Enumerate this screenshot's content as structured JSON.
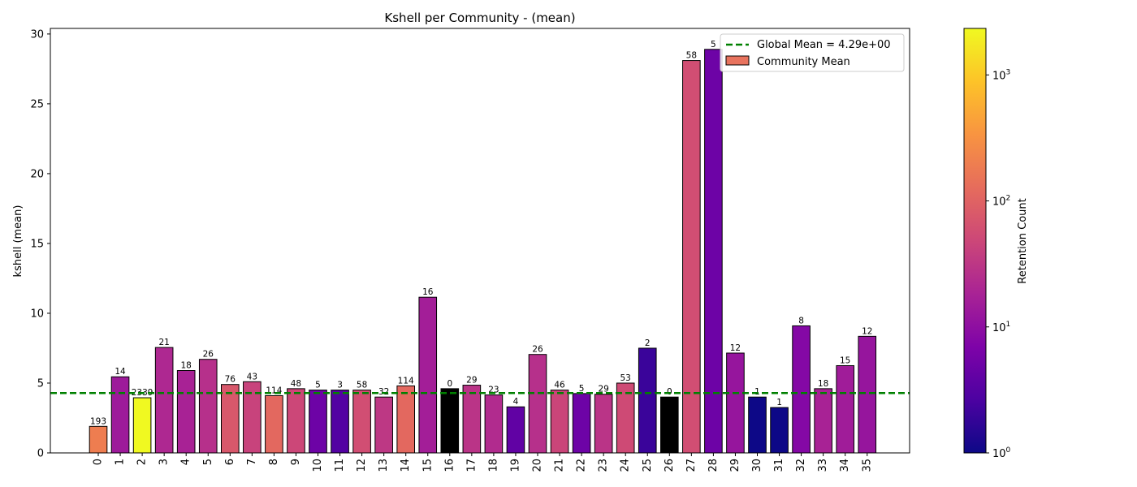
{
  "chart_data": {
    "type": "bar",
    "title": "Kshell per Community - (mean)",
    "xlabel": "",
    "ylabel": "kshell (mean)",
    "ylim": [
      0,
      30.4
    ],
    "yticks": [
      0,
      5,
      10,
      15,
      20,
      25,
      30
    ],
    "grid": false,
    "legend_position": "top-right",
    "categories": [
      "0",
      "1",
      "2",
      "3",
      "4",
      "5",
      "6",
      "7",
      "8",
      "9",
      "10",
      "11",
      "12",
      "13",
      "14",
      "15",
      "16",
      "17",
      "18",
      "19",
      "20",
      "21",
      "22",
      "23",
      "24",
      "25",
      "26",
      "27",
      "28",
      "29",
      "30",
      "31",
      "32",
      "33",
      "34",
      "35"
    ],
    "values": [
      1.9,
      5.45,
      3.95,
      7.55,
      5.9,
      6.7,
      4.9,
      5.1,
      4.1,
      4.6,
      4.5,
      4.5,
      4.5,
      4.0,
      4.8,
      11.15,
      4.6,
      4.85,
      4.15,
      3.3,
      7.05,
      4.5,
      4.25,
      4.2,
      5.0,
      7.5,
      4.0,
      28.1,
      28.9,
      7.15,
      4.0,
      3.25,
      9.1,
      4.6,
      6.25,
      8.35
    ],
    "bar_labels": [
      "193",
      "14",
      "2339",
      "21",
      "18",
      "26",
      "76",
      "43",
      "114",
      "48",
      "5",
      "3",
      "58",
      "32",
      "114",
      "16",
      "0",
      "29",
      "23",
      "4",
      "26",
      "46",
      "5",
      "29",
      "53",
      "2",
      "0",
      "58",
      "5",
      "12",
      "1",
      "1",
      "8",
      "18",
      "15",
      "12"
    ],
    "retention_counts": [
      193,
      14,
      2339,
      21,
      18,
      26,
      76,
      43,
      114,
      48,
      5,
      3,
      58,
      32,
      114,
      16,
      0,
      29,
      23,
      4,
      26,
      46,
      5,
      29,
      53,
      2,
      0,
      58,
      5,
      12,
      1,
      1,
      8,
      18,
      15,
      12
    ],
    "global_mean": {
      "value": 4.29,
      "label": "Global Mean = 4.29e+00",
      "color": "#008000"
    },
    "series": [
      {
        "name": "Community Mean"
      }
    ],
    "colorbar": {
      "label": "Retention Count",
      "scale": "log",
      "range": [
        1,
        2339
      ],
      "ticks": [
        {
          "base": "10",
          "exp": "0",
          "value": 1
        },
        {
          "base": "10",
          "exp": "1",
          "value": 10
        },
        {
          "base": "10",
          "exp": "2",
          "value": 100
        },
        {
          "base": "10",
          "exp": "3",
          "value": 1000
        }
      ],
      "colormap": "plasma",
      "zero_color": "#000000"
    }
  }
}
